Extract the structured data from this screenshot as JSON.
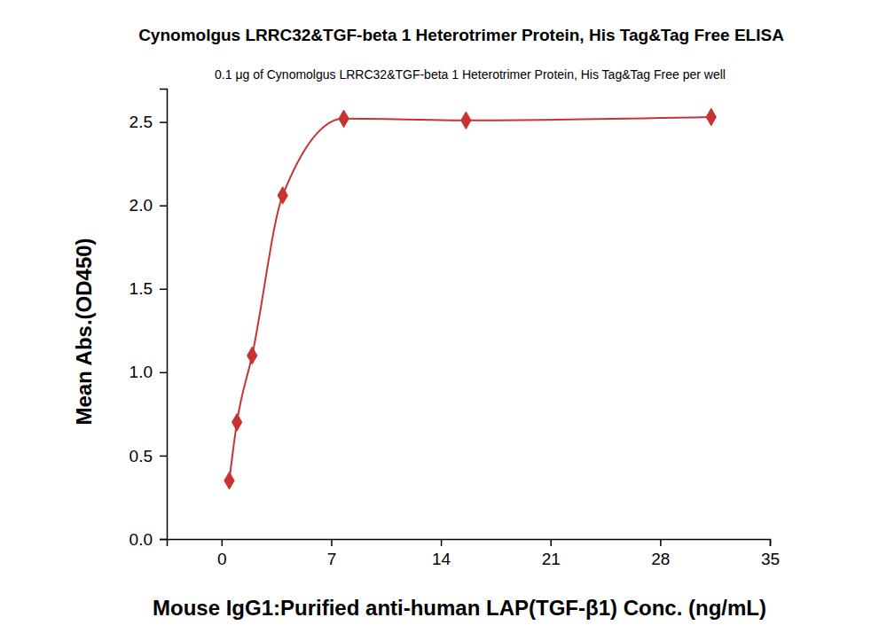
{
  "chart_data": {
    "type": "line",
    "title": "Cynomolgus LRRC32&TGF-beta 1 Heterotrimer Protein, His Tag&Tag Free ELISA",
    "subtitle": "0.1 μg of Cynomolgus LRRC32&TGF-beta 1 Heterotrimer Protein, His Tag&Tag Free per well",
    "x_label": "Mouse IgG1:Purified anti-human LAP(TGF-β1) Conc. (ng/mL)",
    "y_label": "Mean Abs.(OD450)",
    "x": [
      0.49,
      0.98,
      1.95,
      3.9,
      7.8,
      15.6,
      31.25
    ],
    "series": [
      {
        "color": "#c83232",
        "marker": "diamond",
        "line_style": "solid",
        "values": [
          0.35,
          0.7,
          1.1,
          2.06,
          2.52,
          2.51,
          2.53
        ]
      }
    ],
    "xlim": [
      -3.5,
      35
    ],
    "xticks": [
      0,
      7,
      14,
      21,
      28,
      35
    ],
    "ylim": [
      0,
      2.7
    ],
    "yticks": [
      {
        "value": 0,
        "label": "0.0"
      },
      0.5,
      {
        "value": 1,
        "label": "1.0"
      },
      1.5,
      {
        "value": 2,
        "label": "2.0"
      },
      2.5
    ],
    "grid": false
  }
}
